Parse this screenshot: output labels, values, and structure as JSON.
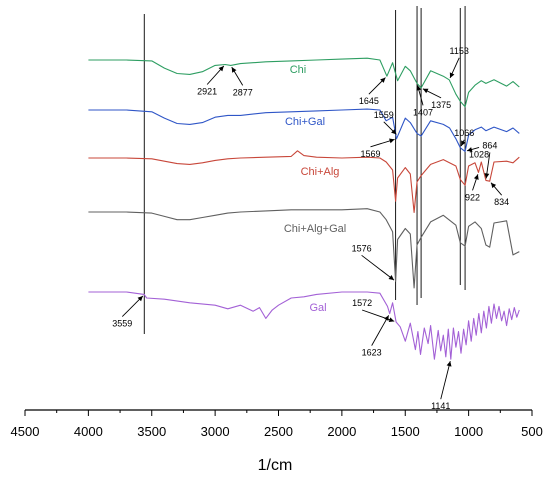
{
  "chart_data": {
    "type": "line",
    "title": "",
    "xlabel": "1/cm",
    "ylabel": "",
    "xlim": [
      4500,
      500
    ],
    "x_reversed": true,
    "xticks": [
      4500,
      4000,
      3500,
      3000,
      2500,
      2000,
      1500,
      1000,
      500
    ],
    "grid": false,
    "legend": "inline labels next to each trace",
    "series": [
      {
        "name": "Chi",
        "color": "#2e9e62",
        "x": [
          4000,
          3900,
          3700,
          3500,
          3400,
          3300,
          3200,
          3100,
          3000,
          2921,
          2877,
          2800,
          2600,
          2400,
          2200,
          2000,
          1800,
          1700,
          1645,
          1600,
          1560,
          1500,
          1460,
          1407,
          1375,
          1300,
          1200,
          1153,
          1100,
          1066,
          1028,
          1000,
          950,
          900,
          864,
          800,
          700,
          650,
          600
        ],
        "y": [
          0.0,
          0.0,
          0.0,
          -0.1,
          -0.9,
          -1.5,
          -1.6,
          -1.3,
          -0.6,
          -0.5,
          -0.6,
          -0.4,
          -0.2,
          -0.1,
          0.0,
          0.1,
          0.2,
          0.0,
          -1.8,
          -0.3,
          -2.3,
          -0.7,
          -1.2,
          -2.6,
          -3.1,
          -1.2,
          -1.8,
          -2.2,
          -3.8,
          -4.6,
          -5.2,
          -3.6,
          -2.8,
          -2.3,
          -2.6,
          -2.2,
          -2.9,
          -2.4,
          -3.0
        ]
      },
      {
        "name": "Chi+Gal",
        "color": "#2f56c7",
        "x": [
          4000,
          3900,
          3700,
          3500,
          3400,
          3300,
          3200,
          3100,
          3000,
          2900,
          2800,
          2600,
          2400,
          2200,
          2000,
          1800,
          1700,
          1650,
          1600,
          1569,
          1500,
          1460,
          1407,
          1375,
          1300,
          1200,
          1150,
          1100,
          1066,
          1028,
          1000,
          950,
          900,
          864,
          800,
          700,
          650,
          600
        ],
        "y": [
          0.0,
          0.0,
          0.0,
          -0.2,
          -0.9,
          -1.5,
          -1.6,
          -1.4,
          -0.8,
          -0.6,
          -0.6,
          -0.3,
          -0.2,
          -0.1,
          0.0,
          0.1,
          0.0,
          -1.2,
          -0.8,
          -3.2,
          -0.9,
          -1.4,
          -2.6,
          -2.9,
          -1.2,
          -1.6,
          -2.0,
          -3.2,
          -4.2,
          -4.6,
          -2.8,
          -2.2,
          -1.9,
          -2.3,
          -1.9,
          -2.4,
          -2.0,
          -2.6
        ]
      },
      {
        "name": "Chi+Alg",
        "color": "#c8473a",
        "x": [
          4000,
          3900,
          3700,
          3500,
          3400,
          3300,
          3200,
          3100,
          3000,
          2900,
          2800,
          2600,
          2400,
          2350,
          2300,
          2200,
          2000,
          1800,
          1700,
          1650,
          1600,
          1576,
          1560,
          1500,
          1460,
          1430,
          1407,
          1375,
          1300,
          1200,
          1100,
          1066,
          1028,
          1000,
          950,
          922,
          900,
          864,
          834,
          800,
          700,
          650,
          600
        ],
        "y": [
          0.0,
          0.0,
          0.0,
          -0.1,
          -0.4,
          -0.7,
          -0.8,
          -0.6,
          -0.3,
          -0.1,
          0.0,
          0.1,
          0.2,
          0.9,
          0.3,
          0.1,
          0.0,
          0.1,
          0.0,
          -0.5,
          -1.5,
          -5.4,
          -2.5,
          -1.2,
          -2.0,
          -6.8,
          -3.0,
          -2.2,
          -0.8,
          -0.2,
          -1.0,
          -2.7,
          -3.4,
          -1.0,
          -0.6,
          -1.8,
          -0.5,
          -2.8,
          -2.9,
          -0.5,
          -0.4,
          -0.6,
          0.1
        ]
      },
      {
        "name": "Chi+Alg+Gal",
        "color": "#606060",
        "x": [
          4000,
          3900,
          3700,
          3500,
          3400,
          3300,
          3200,
          3100,
          3000,
          2900,
          2800,
          2600,
          2400,
          2200,
          2000,
          1800,
          1700,
          1650,
          1600,
          1576,
          1560,
          1500,
          1460,
          1430,
          1407,
          1375,
          1300,
          1200,
          1100,
          1066,
          1028,
          1000,
          950,
          900,
          864,
          834,
          800,
          700,
          650,
          600
        ],
        "y": [
          0.0,
          0.0,
          0.0,
          -0.1,
          -0.4,
          -0.7,
          -0.7,
          -0.5,
          -0.3,
          -0.1,
          0.0,
          0.1,
          0.2,
          0.2,
          0.2,
          0.3,
          0.0,
          -0.7,
          -1.8,
          -6.3,
          -2.5,
          -1.5,
          -2.0,
          -6.9,
          -3.0,
          -2.3,
          -0.9,
          -0.3,
          -1.2,
          -2.8,
          -3.1,
          -1.3,
          -0.9,
          -1.5,
          -3.0,
          -3.2,
          -1.0,
          -0.8,
          -3.9,
          -3.6
        ]
      },
      {
        "name": "Gal",
        "color": "#a361d6",
        "x": [
          4000,
          3700,
          3560,
          3540,
          3400,
          3200,
          3000,
          2900,
          2800,
          2700,
          2650,
          2600,
          2550,
          2500,
          2400,
          2300,
          2200,
          2000,
          1800,
          1700,
          1640,
          1623,
          1600,
          1572,
          1540,
          1500,
          1460,
          1420,
          1400,
          1380,
          1350,
          1320,
          1300,
          1270,
          1240,
          1220,
          1200,
          1180,
          1160,
          1141,
          1120,
          1100,
          1080,
          1060,
          1040,
          1020,
          1000,
          980,
          960,
          940,
          920,
          900,
          880,
          860,
          840,
          820,
          800,
          780,
          760,
          740,
          720,
          700,
          680,
          660,
          640,
          620,
          600
        ],
        "y": [
          0.0,
          0.0,
          -0.2,
          -0.5,
          -0.6,
          -0.9,
          -1.1,
          -1.4,
          -1.1,
          -1.6,
          -1.3,
          -2.2,
          -1.5,
          -1.1,
          -0.5,
          -0.4,
          -0.2,
          0.0,
          0.0,
          -0.1,
          -1.2,
          -1.8,
          -0.9,
          -2.5,
          -2.9,
          -4.1,
          -2.6,
          -4.8,
          -3.3,
          -5.2,
          -3.0,
          -4.3,
          -2.8,
          -5.6,
          -3.2,
          -4.9,
          -3.6,
          -5.4,
          -3.1,
          -5.6,
          -3.0,
          -4.6,
          -3.3,
          -5.1,
          -3.1,
          -4.4,
          -2.4,
          -4.1,
          -2.2,
          -3.6,
          -1.8,
          -3.4,
          -1.6,
          -3.0,
          -1.2,
          -2.6,
          -1.0,
          -2.2,
          -1.2,
          -2.4,
          -1.6,
          -2.8,
          -1.4,
          -2.3,
          -1.3,
          -2.1,
          -1.5
        ]
      }
    ],
    "reference_lines": [
      3559,
      1576,
      1407,
      1375,
      1066,
      1028
    ],
    "annotations": [
      {
        "text": "2921",
        "series": "Chi",
        "x": 2921
      },
      {
        "text": "2877",
        "series": "Chi",
        "x": 2877
      },
      {
        "text": "1645",
        "series": "Chi",
        "x": 1645
      },
      {
        "text": "1407",
        "series": "Chi",
        "x": 1407
      },
      {
        "text": "1375",
        "series": "Chi",
        "x": 1375
      },
      {
        "text": "1153",
        "series": "Chi",
        "x": 1153
      },
      {
        "text": "1559",
        "series": "Chi+Gal",
        "x": 1559
      },
      {
        "text": "1569",
        "series": "Chi+Gal",
        "x": 1569
      },
      {
        "text": "1066",
        "series": "Chi+Gal",
        "x": 1066
      },
      {
        "text": "1028",
        "series": "Chi+Gal",
        "x": 1028
      },
      {
        "text": "864",
        "series": "Chi+Alg",
        "x": 864
      },
      {
        "text": "922",
        "series": "Chi+Alg",
        "x": 922
      },
      {
        "text": "834",
        "series": "Chi+Alg",
        "x": 834
      },
      {
        "text": "1576",
        "series": "Chi+Alg+Gal",
        "x": 1576
      },
      {
        "text": "1572",
        "series": "Gal",
        "x": 1572
      },
      {
        "text": "1623",
        "series": "Gal",
        "x": 1623
      },
      {
        "text": "1141",
        "series": "Gal",
        "x": 1141
      },
      {
        "text": "3559",
        "series": "Gal",
        "x": 3559
      }
    ]
  }
}
